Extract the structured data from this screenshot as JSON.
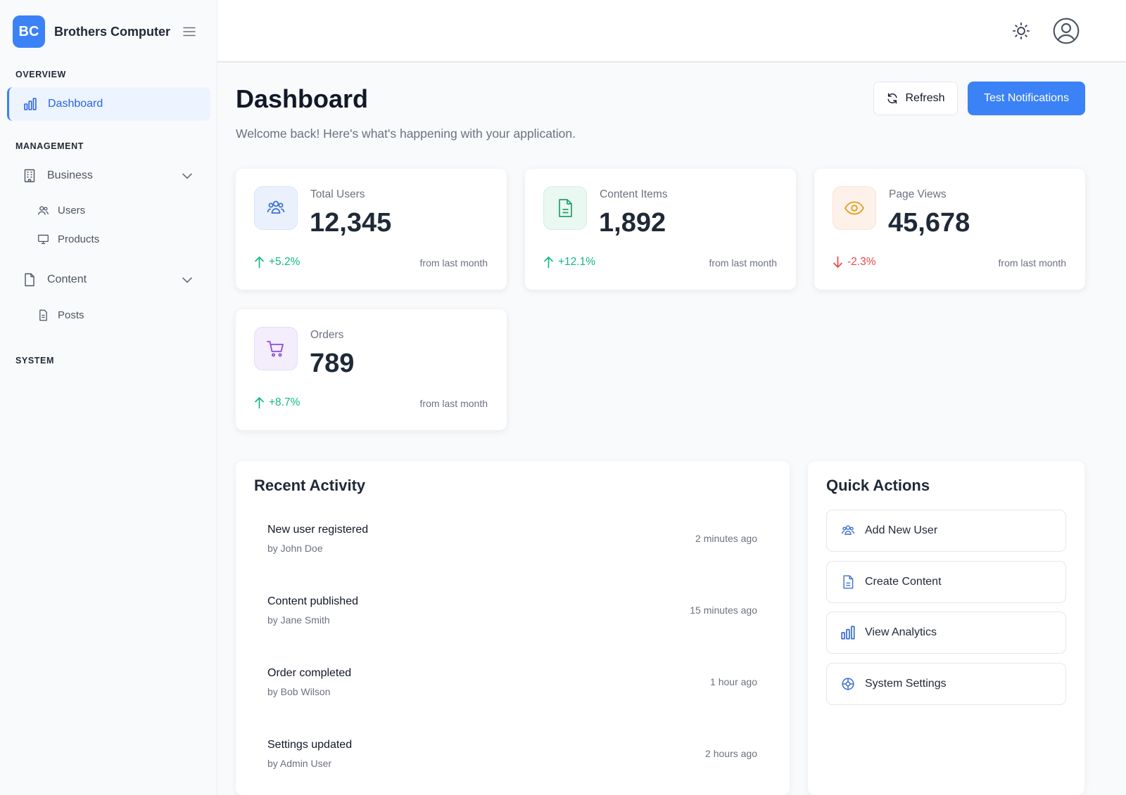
{
  "app": {
    "logo_text": "BC",
    "name": "Brothers Computer"
  },
  "sidebar": {
    "sections": {
      "overview": "OVERVIEW",
      "management": "MANAGEMENT",
      "system": "SYSTEM"
    },
    "items": {
      "dashboard": "Dashboard",
      "business": "Business",
      "users": "Users",
      "products": "Products",
      "content": "Content",
      "posts": "Posts"
    },
    "active": "dashboard"
  },
  "header": {
    "icons": [
      "sun-icon",
      "user-circle-icon"
    ]
  },
  "page": {
    "title": "Dashboard",
    "subtitle": "Welcome back! Here's what's happening with your application.",
    "refresh_label": "Refresh",
    "test_label": "Test Notifications"
  },
  "stats": [
    {
      "label": "Total Users",
      "value": "12,345",
      "change": "+5.2%",
      "trend": "up",
      "foot": "from last month",
      "icon": "users-icon"
    },
    {
      "label": "Content Items",
      "value": "1,892",
      "change": "+12.1%",
      "trend": "up",
      "foot": "from last month",
      "icon": "document-icon"
    },
    {
      "label": "Page Views",
      "value": "45,678",
      "change": "-2.3%",
      "trend": "down",
      "foot": "from last month",
      "icon": "eye-icon"
    },
    {
      "label": "Orders",
      "value": "789",
      "change": "+8.7%",
      "trend": "up",
      "foot": "from last month",
      "icon": "cart-icon"
    }
  ],
  "activity": {
    "title": "Recent Activity",
    "items": [
      {
        "title": "New user registered",
        "by": "by John Doe",
        "time": "2 minutes ago"
      },
      {
        "title": "Content published",
        "by": "by Jane Smith",
        "time": "15 minutes ago"
      },
      {
        "title": "Order completed",
        "by": "by Bob Wilson",
        "time": "1 hour ago"
      },
      {
        "title": "Settings updated",
        "by": "by Admin User",
        "time": "2 hours ago"
      }
    ]
  },
  "quick_actions": {
    "title": "Quick Actions",
    "items": [
      {
        "label": "Add New User",
        "icon": "users-icon"
      },
      {
        "label": "Create Content",
        "icon": "document-icon"
      },
      {
        "label": "View Analytics",
        "icon": "bar-chart-icon"
      },
      {
        "label": "System Settings",
        "icon": "gear-icon"
      }
    ]
  },
  "colors": {
    "accent": "#3b82f6",
    "up": "#10b981",
    "down": "#ef4444"
  }
}
